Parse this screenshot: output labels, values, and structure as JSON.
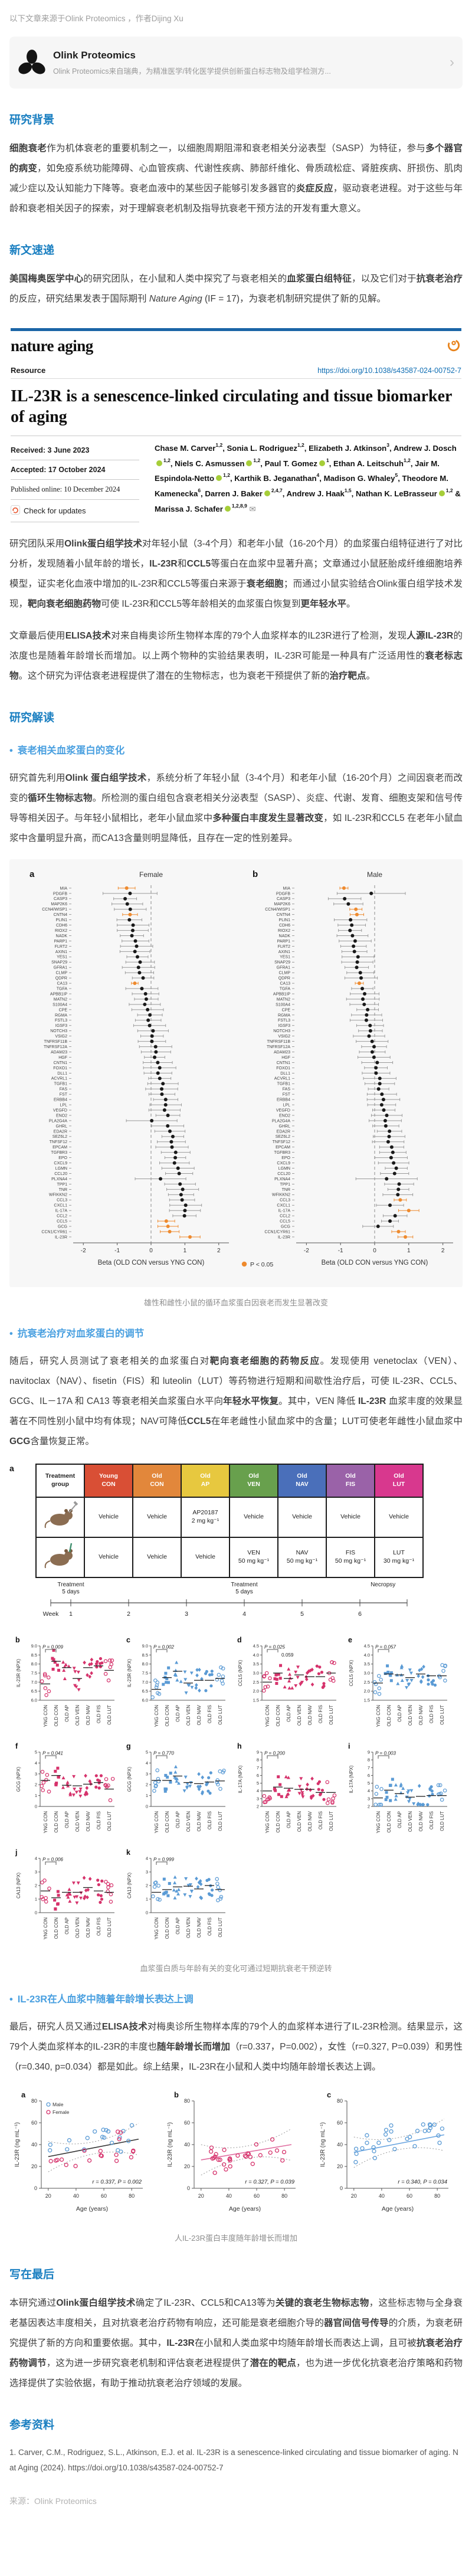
{
  "source_line": {
    "text": "以下文章来源于Olink Proteomics ，作者Dijing Xu"
  },
  "source_card": {
    "name": "Olink Proteomics",
    "desc": "Olink Proteomics来自瑞典，为精准医学/转化医学提供创新蛋白标志物及组学检测方...",
    "chevron": "›"
  },
  "sections": {
    "bg_title": "研究背景",
    "news_title": "新文速递",
    "interpret_title": "研究解读",
    "final_title": "写在最后",
    "refs_title": "参考资料"
  },
  "bullets": {
    "b1": "衰老相关血浆蛋白的变化",
    "b2": "抗衰老治疗对血浆蛋白的调节",
    "b3": "IL-23R在人血浆中随着年龄增长表达上调"
  },
  "paragraphs": {
    "bg": [
      {
        "t": "细胞衰老",
        "b": 1
      },
      {
        "t": "作为机体衰老的重要机制之一，以细胞周期阻滞和衰老相关分泌表型（SASP）为特征，参与"
      },
      {
        "t": "多个器官的病变",
        "b": 1
      },
      {
        "t": "，如免疫系统功能障碍、心血管疾病、代谢性疾病、肺部纤维化、骨质疏松症、肾脏疾病、肝损伤、肌肉减少症以及认知能力下降等。衰老血液中的某些因子能够引发多器官的"
      },
      {
        "t": "炎症反应",
        "b": 1
      },
      {
        "t": "，驱动衰老进程。对于这些与年龄和衰老相关因子的探索，对于理解衰老机制及指导抗衰老干预方法的开发有重大意义。"
      }
    ],
    "news": [
      {
        "t": "美国梅奥医学中心",
        "b": 1
      },
      {
        "t": "的研究团队，在小鼠和人类中探究了与衰老相关的"
      },
      {
        "t": "血浆蛋白组特征",
        "b": 1
      },
      {
        "t": "，以及它们对于"
      },
      {
        "t": "抗衰老治疗",
        "b": 1
      },
      {
        "t": "的反应，研究结果发表于国际期刊 "
      },
      {
        "t": "Nature Aging",
        "i": 1
      },
      {
        "t": " (IF = 17)，为衰老机制研究提供了新的见解。"
      }
    ],
    "summary1": [
      {
        "t": "研究团队采用"
      },
      {
        "t": "Olink蛋白组学技术",
        "b": 1
      },
      {
        "t": "对年轻小鼠（3-4个月）和老年小鼠（16-20个月）的血浆蛋白组特征进行了对比分析，发现随着小鼠年龄的增长，"
      },
      {
        "t": "IL-23R",
        "b": 1
      },
      {
        "t": "和"
      },
      {
        "t": "CCL5",
        "b": 1
      },
      {
        "t": "等蛋白在血浆中显著升高；文章通过小鼠胚胎成纤维细胞培养模型，证实老化血液中增加的IL-23R和CCL5等蛋白来源于"
      },
      {
        "t": "衰老细胞",
        "b": 1
      },
      {
        "t": "；而通过小鼠实验结合Olink蛋白组学技术发现，"
      },
      {
        "t": "靶向衰老细胞药物",
        "b": 1
      },
      {
        "t": "可使 IL-23R和CCL5等年龄相关的血浆蛋白恢复到"
      },
      {
        "t": "更年轻水平",
        "b": 1
      },
      {
        "t": "。"
      }
    ],
    "summary2": [
      {
        "t": "文章最后使用"
      },
      {
        "t": "ELISA技术",
        "b": 1
      },
      {
        "t": "对来自梅奥诊所生物样本库的79个人血浆样本的IL23R进行了检测，发现"
      },
      {
        "t": "人源IL-23R",
        "b": 1
      },
      {
        "t": "的浓度也是随着年龄增长而增加。以上两个物种的实验结果表明，IL-23R可能是一种具有广泛适用性的"
      },
      {
        "t": "衰老标志物",
        "b": 1
      },
      {
        "t": "。这个研究为评估衰老进程提供了潜在的生物标志，也为衰老干预提供了新的"
      },
      {
        "t": "治疗靶点",
        "b": 1
      },
      {
        "t": "。"
      }
    ],
    "interpret_intro": [
      {
        "t": "研究首先利用"
      },
      {
        "t": "Olink 蛋白组学技术",
        "b": 1
      },
      {
        "t": "，系统分析了年轻小鼠（3-4个月）和老年小鼠（16-20个月）之间因衰老而改变的"
      },
      {
        "t": "循环生物标志物",
        "b": 1
      },
      {
        "t": "。所检测的蛋白组包含衰老相关分泌表型（SASP）、炎症、代谢、发育、细胞支架和信号传导等相关因子。与年轻小鼠相比，老年小鼠血浆中"
      },
      {
        "t": "多种蛋白丰度发生显著改变",
        "b": 1
      },
      {
        "t": "，如 IL-23R和CCL5 在老年小鼠血浆中含量明显升高，而CA13含量则明显降低，且存在一定的性别差异。"
      }
    ],
    "drug": [
      {
        "t": "随后，研究人员测试了衰老相关的血浆蛋白对"
      },
      {
        "t": "靶向衰老细胞的药物反应",
        "b": 1
      },
      {
        "t": "。发现使用 venetoclax（VEN）、navitoclax（NAV）、fisetin（FIS）和 luteolin（LUT）等药物进行短期和间歇性治疗后，可使 IL-23R、CCL5、GCG、IL－17A 和 CA13 等衰老相关血浆蛋白水平向"
      },
      {
        "t": "年轻水平恢复",
        "b": 1
      },
      {
        "t": "。其中，VEN 降低 "
      },
      {
        "t": "IL-23R",
        "b": 1
      },
      {
        "t": " 血浆丰度的效果显著在不同性别小鼠中均有体现；NAV可降低"
      },
      {
        "t": "CCL5",
        "b": 1
      },
      {
        "t": "在年老雌性小鼠血浆中的含量；LUT可使老年雌性小鼠血浆中"
      },
      {
        "t": "GCG",
        "b": 1
      },
      {
        "t": "含量恢复正常。"
      }
    ],
    "human": [
      {
        "t": "最后，研究人员又通过"
      },
      {
        "t": "ELISA技术",
        "b": 1
      },
      {
        "t": "对梅奥诊所生物样本库的79个人的血浆样本进行了IL-23R检测。结果显示，这79个人类血浆样本的IL-23R的丰度也"
      },
      {
        "t": "随年龄增长而增加",
        "b": 1
      },
      {
        "t": "（r=0.337，P=0.002），女性（r=0.327, P=0.039）和男性（r=0.340, p=0.034）都是如此。综上结果，IL-23R在小鼠和人类中均随年龄增长表达上调。"
      }
    ],
    "final": [
      {
        "t": "本研究通过"
      },
      {
        "t": "Olink蛋白组学技术",
        "b": 1
      },
      {
        "t": "确定了IL-23R、CCL5和CA13等为"
      },
      {
        "t": "关键的衰老生物标志物",
        "b": 1
      },
      {
        "t": "，这些标志物与全身衰老基因表达丰度相关，且对抗衰老治疗药物有响应，还可能是衰老细胞介导的"
      },
      {
        "t": "器官间信号传导",
        "b": 1
      },
      {
        "t": "的介质，为衰老研究提供了新的方向和重要依据。其中，"
      },
      {
        "t": "IL-23R",
        "b": 1
      },
      {
        "t": "在小鼠和人类血浆中均随年龄增长而表达上调，且可被"
      },
      {
        "t": "抗衰老治疗药物调节",
        "b": 1
      },
      {
        "t": "，这为进一步研究衰老机制和评估衰老进程提供了"
      },
      {
        "t": "潜在的靶点",
        "b": 1
      },
      {
        "t": "，也为进一步优化抗衰老治疗策略和药物选择提供了实验依据，有助于推动抗衰老治疗领域的发展。"
      }
    ]
  },
  "paper": {
    "journal": "nature aging",
    "type": "Resource",
    "doi": "https://doi.org/10.1038/s43587-024-00752-7",
    "title": "IL-23R is a senescence-linked circulating and tissue biomarker of aging",
    "received": "Received: 3 June 2023",
    "accepted": "Accepted: 17 October 2024",
    "published": "Published online: 10 December 2024",
    "check": "Check for updates",
    "authors": [
      {
        "n": "Chase M. Carver",
        "s": "1,2"
      },
      {
        "n": "Sonia L. Rodriguez",
        "s": "1,2"
      },
      {
        "n": "Elizabeth J. Atkinson",
        "s": "3"
      },
      {
        "n": "Andrew J. Dosch",
        "s": "1,2",
        "o": 1
      },
      {
        "n": "Niels C. Asmussen",
        "s": "1,2",
        "o": 1
      },
      {
        "n": "Paul T. Gomez",
        "s": "1",
        "o": 1
      },
      {
        "n": "Ethan A. Leitschuh",
        "s": "1,2"
      },
      {
        "n": "Jair M. Espindola-Netto",
        "s": "1,2",
        "o": 1
      },
      {
        "n": "Karthik B. Jeganathan",
        "s": "4"
      },
      {
        "n": "Madison G. Whaley",
        "s": "5"
      },
      {
        "n": "Theodore M. Kamenecka",
        "s": "6"
      },
      {
        "n": "Darren J. Baker",
        "s": "2,4,7",
        "o": 1
      },
      {
        "n": "Andrew J. Haak",
        "s": "1,5"
      },
      {
        "n": "Nathan K. LeBrasseur",
        "s": "1,2",
        "o": 1
      },
      {
        "n": "Marissa J. Schafer",
        "s": "1,2,8,9",
        "o": 1,
        "env": 1
      }
    ]
  },
  "captions": {
    "fig1": "雄性和雌性小鼠的循环血浆蛋白因衰老而发生显著改变",
    "fig2": "血浆蛋白质与年龄有关的变化可通过短期抗衰老干预逆转",
    "fig3": "人IL-23R蛋白丰度随年龄增长而增加"
  },
  "chart_data": [
    {
      "type": "forest",
      "title_left": "Female",
      "title_right": "Male",
      "panel_labels": [
        "a",
        "b"
      ],
      "xlabel": "Beta (OLD CON versus YNG CON)",
      "xticks": [
        -2,
        -1,
        0,
        1,
        2
      ],
      "xlim": [
        -2.3,
        2.3
      ],
      "legend": "P < 0.05",
      "sig_color": "#ee8a2e",
      "point_color": "#1a1a1a",
      "proteins": [
        "MIA",
        "PDGFB",
        "CASP3",
        "MAP2K6",
        "CCN4/WISP1",
        "CNTN4",
        "PLIN1",
        "CDH6",
        "RIOX2",
        "NADK",
        "PARP1",
        "FLRT2",
        "AXIN1",
        "YES1",
        "SNAP29",
        "GFRA1",
        "CLMP",
        "QDPR",
        "CA13",
        "TGFA",
        "APBB1IP",
        "MATN2",
        "S100A4",
        "CPE",
        "RGMA",
        "FSTL3",
        "IGSF3",
        "NOTCH3",
        "VSIG2",
        "TNFRSF11B",
        "TNFRSF12A",
        "ADAM23",
        "HGF",
        "CNTN1",
        "FOXO1",
        "DLL1",
        "ACVRL1",
        "TGFB1",
        "FAS",
        "FST",
        "ERBB4",
        "LPL",
        "VEGFD",
        "ENO2",
        "PLA2G4A",
        "GHRL",
        "EDA2R",
        "SEZ6L2",
        "TNFSF12",
        "EPCAM",
        "TGFBR3",
        "EPO",
        "CXCL9",
        "LGMN",
        "CCL20",
        "PLXNA4",
        "TPP1",
        "TNR",
        "WFIKKN2",
        "CCL3",
        "CXCL1",
        "IL-17A",
        "CCL2",
        "CCL5",
        "GCG",
        "CCN1/CYR61",
        "IL-23R"
      ],
      "female": {
        "start": -0.78,
        "end": 1.15,
        "sig": [
          "MIA",
          "CNTN4",
          "CA13",
          "CCL5",
          "GCG",
          "CCN1/CYR61",
          "IL-23R"
        ],
        "overrides": {
          "MIA": [
            -0.72,
            0.25
          ],
          "PDGFB": [
            -0.62,
            0.8
          ],
          "CNTN4": [
            -0.62,
            0.22
          ],
          "CA13": [
            -0.48,
            0.1
          ],
          "PLA2G4A": [
            0.02,
            0.75
          ],
          "PLXNA4": [
            0.28,
            0.75
          ],
          "CCL5": [
            0.45,
            0.25
          ],
          "GCG": [
            0.5,
            0.3
          ],
          "CCN1/CYR61": [
            0.55,
            0.28
          ],
          "IL-23R": [
            1.15,
            0.3
          ]
        }
      },
      "male": {
        "start": -0.9,
        "end": 0.95,
        "sig": [
          "MIA",
          "CCN4/WISP1",
          "CNTN4",
          "CA13",
          "CCL3",
          "IL-17A",
          "CCN1/CYR61",
          "IL-23R"
        ],
        "overrides": {
          "MIA": [
            -0.9,
            0.12
          ],
          "PDGFB": [
            -0.1,
            1.0
          ],
          "CCN4/WISP1": [
            -0.55,
            0.18
          ],
          "CNTN4": [
            -0.52,
            0.2
          ],
          "CA13": [
            -0.45,
            0.12
          ],
          "PLXNA4": [
            0.35,
            0.9
          ],
          "CCL3": [
            0.75,
            0.18
          ],
          "CXCL1": [
            0.45,
            0.4
          ],
          "IL-17A": [
            1.0,
            0.3
          ],
          "CCL2": [
            0.6,
            0.35
          ],
          "CCL5": [
            0.45,
            0.25
          ],
          "GCG": [
            0.1,
            0.45
          ],
          "CCN1/CYR61": [
            0.7,
            0.2
          ],
          "IL-23R": [
            0.9,
            0.22
          ]
        }
      }
    },
    {
      "type": "treatment_panel",
      "panel_label": "a",
      "table": {
        "corner": "Treatment\ngroup",
        "groups": [
          {
            "label": "Young\nCON",
            "color": "#d94f35"
          },
          {
            "label": "Old\nCON",
            "color": "#e2873b"
          },
          {
            "label": "Old\nAP",
            "color": "#e7c83f"
          },
          {
            "label": "Old\nVEN",
            "color": "#68a04d"
          },
          {
            "label": "Old\nNAV",
            "color": "#4a6fba"
          },
          {
            "label": "Old\nFIS",
            "color": "#9a62a8"
          },
          {
            "label": "Old\nLUT",
            "color": "#d8388e"
          }
        ],
        "rows": [
          {
            "icon": "mouse-injection-icon",
            "cells": [
              "Vehicle",
              "Vehicle",
              "AP20187\n2 mg kg⁻¹",
              "Vehicle",
              "Vehicle",
              "Vehicle",
              "Vehicle"
            ]
          },
          {
            "icon": "mouse-gavage-icon",
            "cells": [
              "Vehicle",
              "Vehicle",
              "Vehicle",
              "VEN\n50 mg kg⁻¹",
              "NAV\n50 mg kg⁻¹",
              "FIS\n50 mg kg⁻¹",
              "LUT\n30 mg kg⁻¹"
            ]
          }
        ]
      },
      "timeline": {
        "label": "Week",
        "weeks": [
          1,
          2,
          3,
          4,
          5,
          6
        ],
        "annotations": [
          {
            "text": "Treatment\n5 days",
            "week": 1
          },
          {
            "text": "Treatment\n5 days",
            "week": 4
          },
          {
            "text": "Necropsy",
            "week": 6.4
          }
        ]
      },
      "group_axis": [
        "YNG CON",
        "OLD CON",
        "OLD AP",
        "OLD VEN",
        "OLD NAV",
        "OLD FIS",
        "OLD LUT"
      ],
      "female_color": "#d6336c",
      "male_color": "#5b9bd5",
      "panels": [
        {
          "id": "b",
          "ylabel": "IL-23R (NPX)",
          "ylim": [
            6,
            9
          ],
          "yticks": [
            "6.0",
            "6.5",
            "7.0",
            "7.5",
            "8.0",
            "8.5",
            "9.0"
          ],
          "p": "P = 0.009",
          "sex": "female",
          "means": [
            6.9,
            8.15,
            7.8,
            7.2,
            7.8,
            7.9,
            7.65
          ]
        },
        {
          "id": "c",
          "ylabel": "IL-23R (NPX)",
          "ylim": [
            6,
            9
          ],
          "yticks": [
            "6.0",
            "6.5",
            "7.0",
            "7.5",
            "8.0",
            "8.5",
            "9.0"
          ],
          "p": "P = 0.002",
          "sex": "male",
          "means": [
            6.6,
            7.25,
            7.6,
            6.95,
            7.1,
            7.1,
            7.2
          ]
        },
        {
          "id": "d",
          "ylabel": "CCL5 (NPX)",
          "ylim": [
            1.5,
            4.5
          ],
          "yticks": [
            "1.5",
            "2.0",
            "2.5",
            "3.0",
            "3.5",
            "4.0",
            "4.5"
          ],
          "p": "P = 0.025",
          "p2": "0.059",
          "sex": "female",
          "means": [
            2.5,
            3.0,
            2.7,
            2.9,
            2.8,
            2.8,
            3.0
          ]
        },
        {
          "id": "e",
          "ylabel": "CCL5 (NPX)",
          "ylim": [
            1.5,
            4.5
          ],
          "yticks": [
            "1.5",
            "2.0",
            "2.5",
            "3.0",
            "3.5",
            "4.0",
            "4.5"
          ],
          "p": "P = 0.057",
          "sex": "male",
          "means": [
            2.45,
            2.95,
            2.9,
            2.75,
            2.95,
            2.85,
            2.85
          ]
        },
        {
          "id": "f",
          "ylabel": "GCG (NPX)",
          "ylim": [
            0,
            5
          ],
          "yticks": [
            "0",
            "1",
            "2",
            "3",
            "4",
            "5"
          ],
          "p": "P = 0.041",
          "sex": "female",
          "means": [
            2.4,
            2.85,
            1.95,
            1.9,
            2.05,
            2.2,
            1.6
          ]
        },
        {
          "id": "g",
          "ylabel": "GCG (NPX)",
          "ylim": [
            0,
            5
          ],
          "yticks": [
            "0",
            "1",
            "2",
            "3",
            "4",
            "5"
          ],
          "p": "P = 0.770",
          "sex": "male",
          "means": [
            2.4,
            2.4,
            2.8,
            2.2,
            2.1,
            2.25,
            2.35
          ]
        },
        {
          "id": "h",
          "ylabel": "IL-17A (NPX)",
          "ylim": [
            2,
            9
          ],
          "yticks": [
            "2",
            "3",
            "4",
            "5",
            "6",
            "7",
            "8",
            "9"
          ],
          "p": "P = 0.200",
          "sex": "female",
          "means": [
            4.0,
            4.5,
            4.35,
            4.2,
            4.2,
            3.8,
            3.8
          ]
        },
        {
          "id": "i",
          "ylabel": "IL-17A (NPX)",
          "ylim": [
            2,
            9
          ],
          "yticks": [
            "2",
            "3",
            "4",
            "5",
            "6",
            "7",
            "8",
            "9"
          ],
          "p": "P = 0.003",
          "sex": "male",
          "means": [
            3.1,
            4.1,
            3.65,
            3.2,
            3.3,
            3.4,
            3.4
          ]
        },
        {
          "id": "j",
          "ylabel": "CA13 (NPX)",
          "ylim": [
            0,
            4
          ],
          "yticks": [
            "0",
            "1",
            "2",
            "3",
            "4"
          ],
          "p": "P = 0.006",
          "sex": "female",
          "means": [
            1.6,
            1.1,
            1.5,
            1.5,
            1.85,
            1.6,
            1.5
          ]
        },
        {
          "id": "k",
          "ylabel": "CA13 (NPX)",
          "ylim": [
            0,
            4
          ],
          "yticks": [
            "0",
            "1",
            "2",
            "3",
            "4"
          ],
          "p": "P = 0.999",
          "sex": "male",
          "means": [
            1.5,
            1.7,
            1.9,
            1.95,
            1.75,
            2.0,
            1.7
          ]
        }
      ]
    },
    {
      "type": "scatter",
      "ylabel": "IL-23R (ng mL⁻¹)",
      "xlabel": "Age (years)",
      "ylim": [
        0,
        80
      ],
      "yticks": [
        0,
        20,
        40,
        60,
        80
      ],
      "xlim": [
        15,
        88
      ],
      "xticks": [
        20,
        40,
        60,
        80
      ],
      "male_color": "#5b9bd5",
      "female_color": "#d6336c",
      "legend": [
        "Male",
        "Female"
      ],
      "panels": [
        {
          "id": "a",
          "series": [
            "male",
            "female"
          ],
          "line_color": "#333333",
          "annotation": "r = 0.337, P = 0.002",
          "trend": {
            "x0": 20,
            "y0": 29,
            "x1": 85,
            "y1": 45
          }
        },
        {
          "id": "b",
          "series": [
            "female"
          ],
          "line_color": "#e06c9f",
          "annotation": "r = 0.327, P = 0.039",
          "trend": {
            "x0": 20,
            "y0": 26,
            "x1": 85,
            "y1": 40
          }
        },
        {
          "id": "c",
          "series": [
            "male"
          ],
          "line_color": "#6aa5e0",
          "annotation": "r = 0.340, P = 0.034",
          "trend": {
            "x0": 20,
            "y0": 33,
            "x1": 85,
            "y1": 49
          }
        }
      ]
    }
  ],
  "reference": "1. Carver, C.M., Rodriguez, S.L., Atkinson, E.J. et al. IL-23R is a senescence-linked circulating and tissue biomarker of aging. Nat Aging (2024). https://doi.org/10.1038/s43587-024-00752-7",
  "footer": "来源：Olink Proteomics"
}
